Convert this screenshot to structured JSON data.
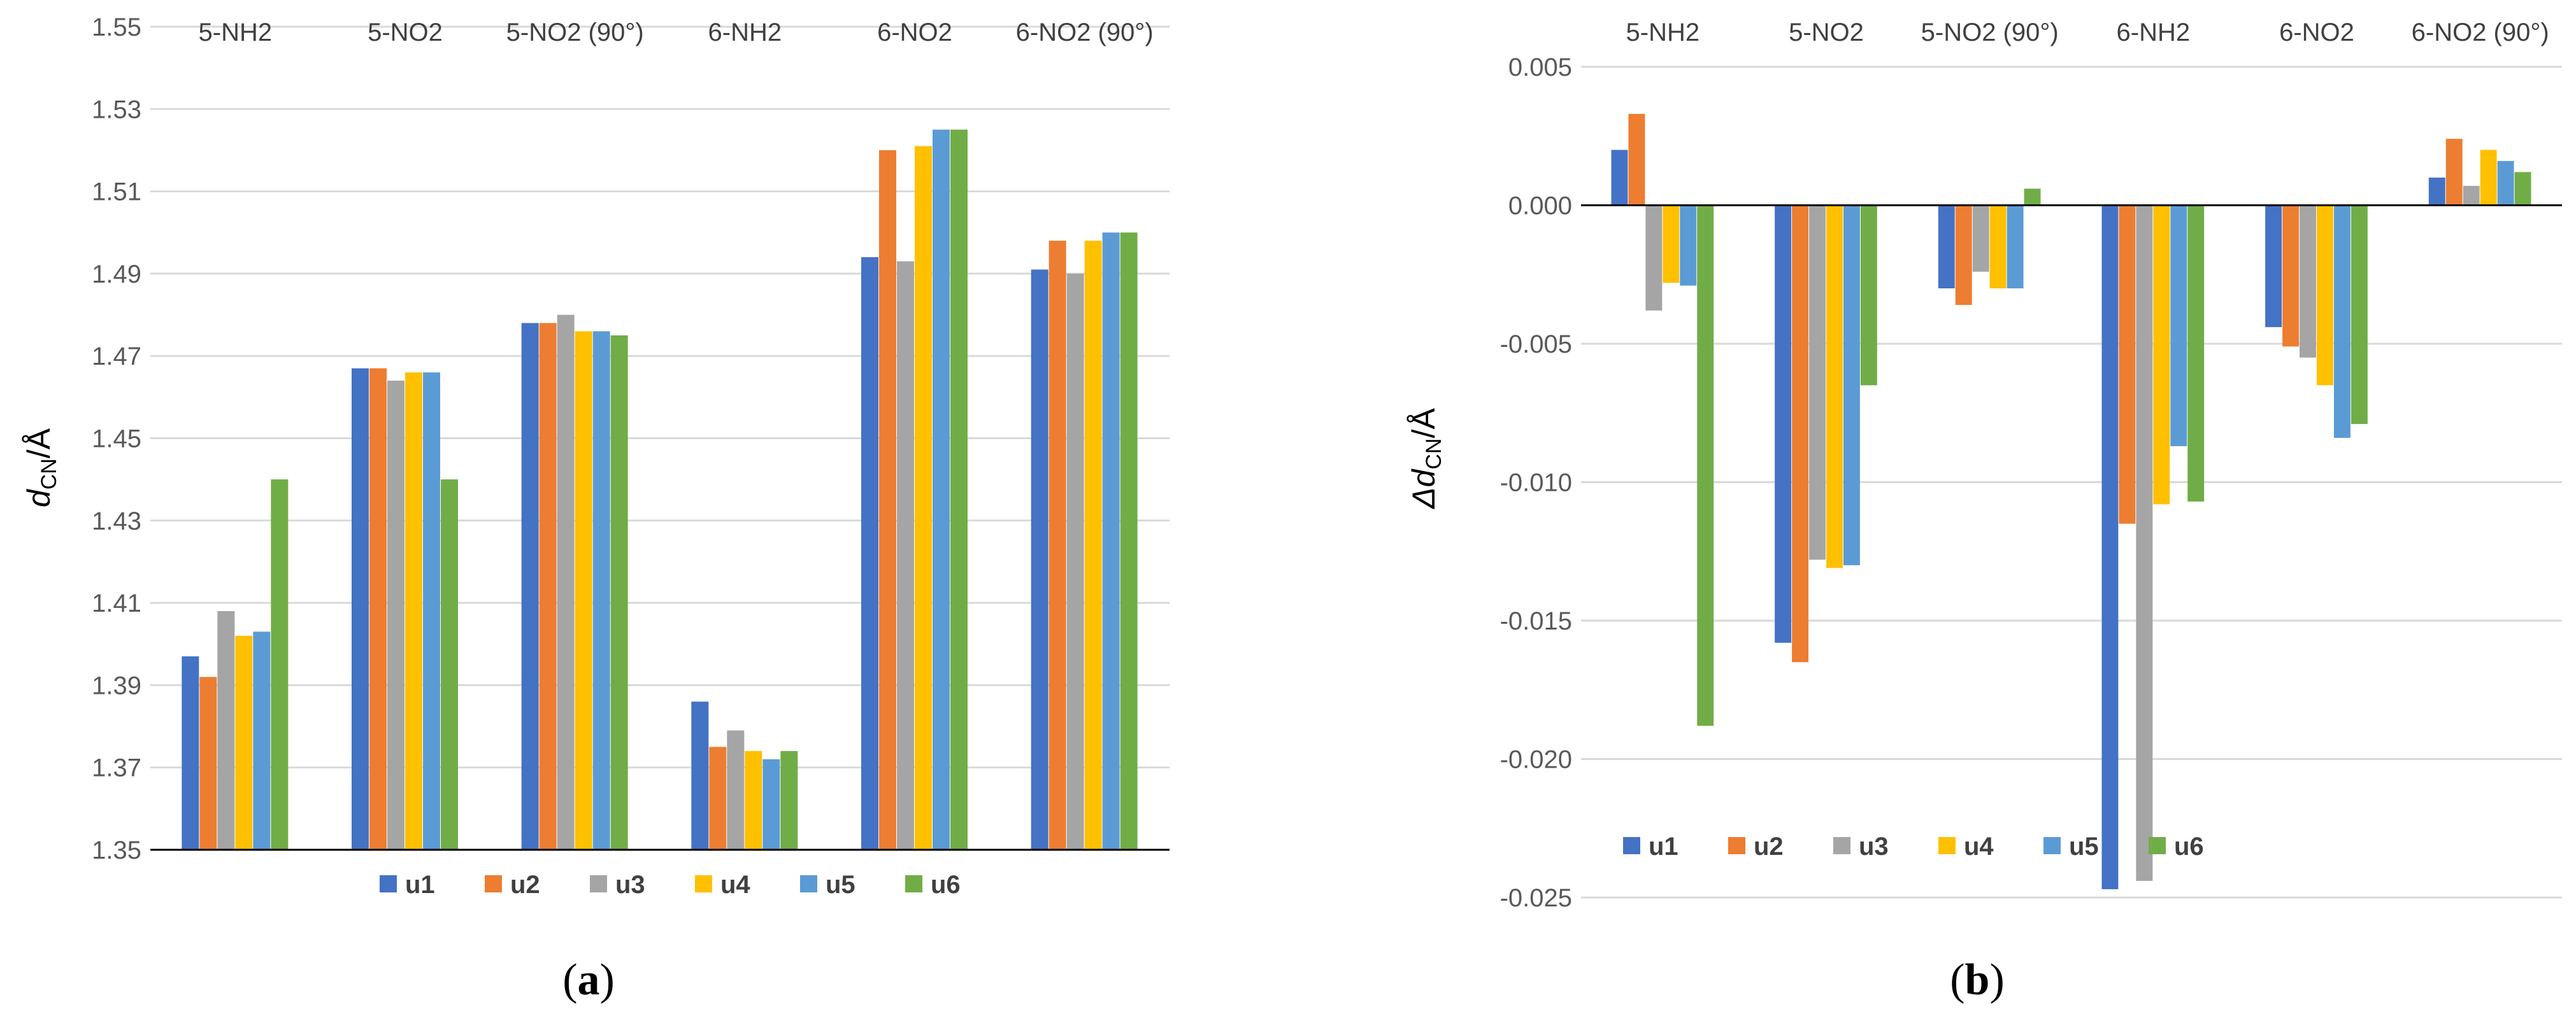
{
  "chart_data": [
    {
      "type": "bar",
      "panel_label": "(a)",
      "panel_letter": "a",
      "ylabel_main": "d",
      "ylabel_sub": "CN",
      "ylabel_unit": "/Å",
      "ylim": [
        1.35,
        1.55
      ],
      "yticks": [
        "1.35",
        "1.37",
        "1.39",
        "1.41",
        "1.43",
        "1.45",
        "1.47",
        "1.49",
        "1.51",
        "1.53",
        "1.55"
      ],
      "ytick_values": [
        1.35,
        1.37,
        1.39,
        1.41,
        1.43,
        1.45,
        1.47,
        1.49,
        1.51,
        1.53,
        1.55
      ],
      "categories": [
        "5-NH2",
        "5-NO2",
        "5-NO2 (90°)",
        "6-NH2",
        "6-NO2",
        "6-NO2 (90°)"
      ],
      "grid": true,
      "legend_position": "bottom",
      "series": [
        {
          "name": "u1",
          "values": [
            1.397,
            1.467,
            1.478,
            1.386,
            1.494,
            1.491
          ]
        },
        {
          "name": "u2",
          "values": [
            1.392,
            1.467,
            1.478,
            1.375,
            1.52,
            1.498
          ]
        },
        {
          "name": "u3",
          "values": [
            1.408,
            1.464,
            1.48,
            1.379,
            1.493,
            1.49
          ]
        },
        {
          "name": "u4",
          "values": [
            1.402,
            1.466,
            1.476,
            1.374,
            1.521,
            1.498
          ]
        },
        {
          "name": "u5",
          "values": [
            1.403,
            1.466,
            1.476,
            1.372,
            1.525,
            1.5
          ]
        },
        {
          "name": "u6",
          "values": [
            1.44,
            1.44,
            1.475,
            1.374,
            1.525,
            1.5
          ]
        }
      ]
    },
    {
      "type": "bar",
      "panel_label": "(b)",
      "panel_letter": "b",
      "ylabel_main": "Δd",
      "ylabel_sub": "CN",
      "ylabel_unit": "/Å",
      "ylim": [
        -0.025,
        0.005
      ],
      "yticks": [
        "-0.025",
        "-0.020",
        "-0.015",
        "-0.010",
        "-0.005",
        "0.000",
        "0.005"
      ],
      "ytick_values": [
        -0.025,
        -0.02,
        -0.015,
        -0.01,
        -0.005,
        0.0,
        0.005
      ],
      "categories": [
        "5-NH2",
        "5-NO2",
        "5-NO2 (90°)",
        "6-NH2",
        "6-NO2",
        "6-NO2 (90°)"
      ],
      "grid": true,
      "legend_position": "bottom-left",
      "series": [
        {
          "name": "u1",
          "values": [
            0.002,
            -0.0158,
            -0.003,
            -0.0247,
            -0.0044,
            0.001
          ]
        },
        {
          "name": "u2",
          "values": [
            0.0033,
            -0.0165,
            -0.0036,
            -0.0115,
            -0.0051,
            0.0024
          ]
        },
        {
          "name": "u3",
          "values": [
            -0.0038,
            -0.0128,
            -0.0024,
            -0.0244,
            -0.0055,
            0.0007
          ]
        },
        {
          "name": "u4",
          "values": [
            -0.0028,
            -0.0131,
            -0.003,
            -0.0108,
            -0.0065,
            0.002
          ]
        },
        {
          "name": "u5",
          "values": [
            -0.0029,
            -0.013,
            -0.003,
            -0.0087,
            -0.0084,
            0.0016
          ]
        },
        {
          "name": "u6",
          "values": [
            -0.0188,
            -0.0065,
            0.0006,
            -0.0107,
            -0.0079,
            0.0012
          ]
        }
      ]
    }
  ],
  "colors": {
    "u1": "#4472C4",
    "u2": "#ED7D31",
    "u3": "#A5A5A5",
    "u4": "#FFC000",
    "u5": "#5B9BD5",
    "u6": "#70AD47",
    "grid": "#D9D9D9",
    "axis": "#000000"
  }
}
